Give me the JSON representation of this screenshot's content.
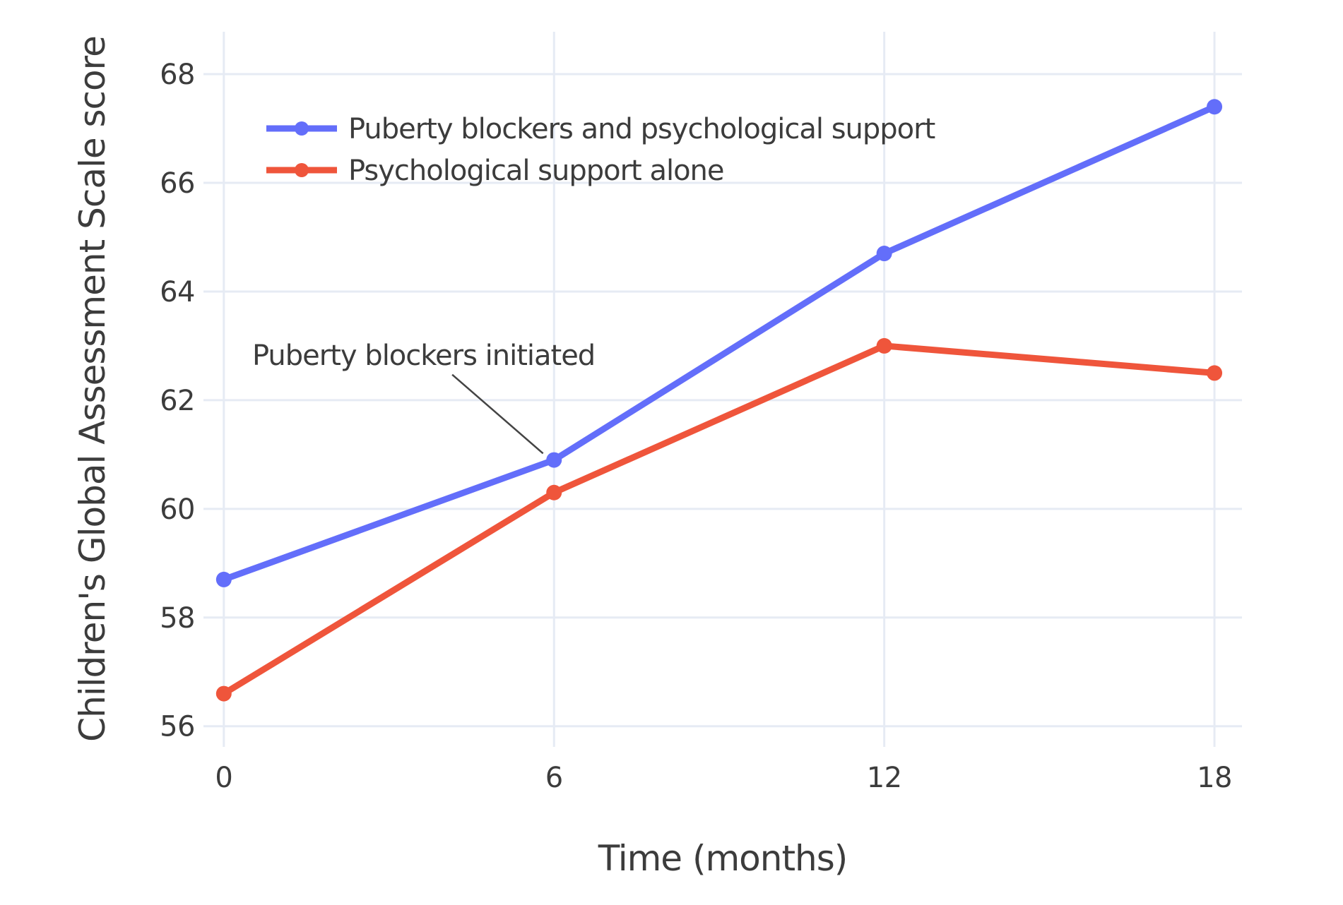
{
  "chart_data": {
    "type": "line",
    "title": "",
    "xlabel": "Time (months)",
    "ylabel": "Children's Global Assessment Scale score",
    "x": [
      0,
      6,
      12,
      18
    ],
    "series": [
      {
        "name": "Puberty blockers and psychological support",
        "color": "#636EFA",
        "values": [
          58.7,
          60.9,
          64.7,
          67.4
        ]
      },
      {
        "name": "Psychological support alone",
        "color": "#EF553B",
        "values": [
          56.6,
          60.3,
          63.0,
          62.5
        ]
      }
    ],
    "x_ticks": [
      0,
      6,
      12,
      18
    ],
    "y_ticks": [
      56,
      58,
      60,
      62,
      64,
      66,
      68
    ],
    "xlim": [
      -0.37,
      18.5
    ],
    "ylim": [
      55.62,
      68.78
    ],
    "grid": true,
    "legend_position": "top-left-inside",
    "annotation": {
      "text": "Puberty blockers initiated",
      "target": {
        "x": 6,
        "y": 60.9
      },
      "label_pos": {
        "x": 3.63,
        "y": 62.65
      },
      "line_from": {
        "x": 4.15,
        "y": 62.47
      },
      "line_to": {
        "x": 5.8,
        "y": 61.02
      }
    },
    "colors": {
      "grid": "#E6EBF4",
      "text": "#3c3c3c",
      "annotation_line": "#444444",
      "background": "#ffffff"
    }
  }
}
